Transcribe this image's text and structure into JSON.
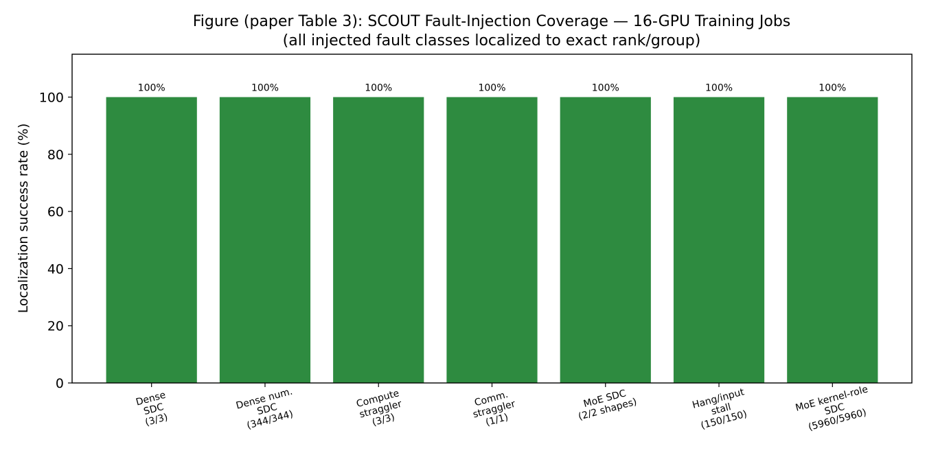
{
  "chart_data": {
    "type": "bar",
    "title": [
      "Figure (paper Table 3): SCOUT Fault-Injection Coverage — 16-GPU Training Jobs",
      "(all injected fault classes localized to exact rank/group)"
    ],
    "xlabel": "",
    "ylabel": "Localization success rate (%)",
    "ylim": [
      0,
      115
    ],
    "yticks": [
      0,
      20,
      40,
      60,
      80,
      100
    ],
    "grid": false,
    "legend": "none",
    "bar_color": "#2e8b40",
    "categories": [
      [
        "Dense",
        "SDC",
        "(3/3)"
      ],
      [
        "Dense num.",
        "SDC",
        "(344/344)"
      ],
      [
        "Compute",
        "straggler",
        "(3/3)"
      ],
      [
        "Comm.",
        "straggler",
        "(1/1)"
      ],
      [
        "MoE SDC",
        "(2/2 shapes)"
      ],
      [
        "Hang/input",
        "stall",
        "(150/150)"
      ],
      [
        "MoE kernel-role",
        "SDC",
        "(5960/5960)"
      ]
    ],
    "values": [
      100,
      100,
      100,
      100,
      100,
      100,
      100
    ],
    "data_labels": [
      "100%",
      "100%",
      "100%",
      "100%",
      "100%",
      "100%",
      "100%"
    ],
    "tick_label_rotation_deg": 15
  }
}
